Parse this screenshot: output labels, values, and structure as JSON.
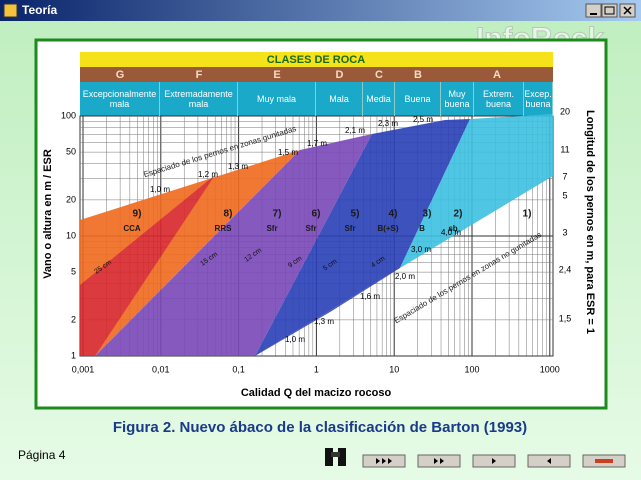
{
  "window": {
    "title": "Teoría",
    "watermark": "InfoRock"
  },
  "figure": {
    "header": "CLASES DE ROCA",
    "class_letters": [
      "G",
      "F",
      "E",
      "D",
      "C",
      "B",
      "A"
    ],
    "class_names": [
      "Excepcionalmente mala",
      "Extremadamente mala",
      "Muy mala",
      "Mala",
      "Media",
      "Buena",
      "Muy buena",
      "Extrem. buena",
      "Excep. buena"
    ],
    "y_axis_label": "Vano o altura en m / ESR",
    "y_ticks": [
      "100",
      "50",
      "20",
      "10",
      "5",
      "2",
      "1"
    ],
    "x_axis_label": "Calidad Q del macizo rocoso",
    "x_ticks": [
      "0,001",
      "0,01",
      "0,1",
      "1",
      "10",
      "100",
      "1000"
    ],
    "right_axis_label": "Longitud de los pernos en m, para ESR = 1",
    "right_ticks": [
      "20",
      "11",
      "7",
      "5",
      "3",
      "2,4",
      "1,5"
    ],
    "zones": [
      {
        "number": "9)",
        "support": "CCA"
      },
      {
        "number": "8)",
        "support": "RRS"
      },
      {
        "number": "7)",
        "support": "Sfr"
      },
      {
        "number": "6)",
        "support": "Sfr"
      },
      {
        "number": "5)",
        "support": "Sfr"
      },
      {
        "number": "4)",
        "support": "B(+S)"
      },
      {
        "number": "3)",
        "support": "B"
      },
      {
        "number": "2)",
        "support": "sb"
      },
      {
        "number": "1)"
      }
    ],
    "spacing_gunited_label": "Espaciado de los pernos en zonas gunitadas",
    "spacing_gunited": [
      "1,0 m",
      "1,2 m",
      "1,3 m",
      "1,5 m",
      "1,7 m",
      "2,1 m",
      "2,3 m",
      "2,5 m"
    ],
    "spacing_ungunited_label": "Espaciado de los pernos en zonas no gunitadas",
    "spacing_ungunited": [
      "1,0 m",
      "1,3 m",
      "1,6 m",
      "2,0 m",
      "3,0 m",
      "4,0 m"
    ],
    "shotcrete": [
      "25 cm",
      "15 cm",
      "12 cm",
      "9 cm",
      "5 cm",
      "4 cm"
    ]
  },
  "caption": "Figura 2. Nuevo ábaco de la clasificación de Barton (1993)",
  "footer": {
    "page": "Página 4"
  }
}
